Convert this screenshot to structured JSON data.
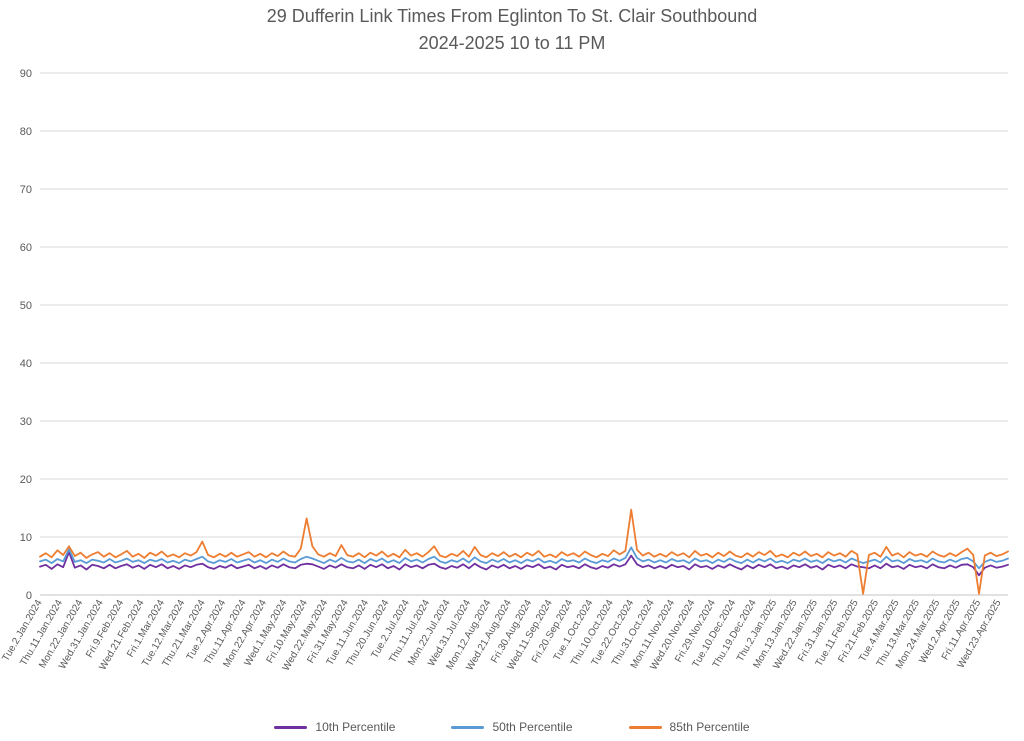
{
  "title": {
    "line1": "29 Dufferin Link Times From Eglinton To St. Clair Southbound",
    "line2": "2024-2025 10 to 11 PM"
  },
  "legend": [
    {
      "label": "10th Percentile",
      "color": "#7030A0"
    },
    {
      "label": "50th Percentile",
      "color": "#5B9BD5"
    },
    {
      "label": "85th Percentile",
      "color": "#ED7D31"
    }
  ],
  "colors": {
    "title_text": "#595959",
    "axis_text": "#595959",
    "gridline": "#D9D9D9",
    "axis_line": "#C3C3C3",
    "background": "#FFFFFF",
    "series_10th": "#7030A0",
    "series_50th": "#5B9BD5",
    "series_85th": "#ED7D31"
  },
  "chart_data": {
    "type": "line",
    "title": "29 Dufferin Link Times From Eglinton To St. Clair Southbound",
    "subtitle": "2024-2025 10 to 11 PM",
    "xlabel": "",
    "ylabel": "",
    "ylim": [
      0,
      90
    ],
    "ytick_interval": 10,
    "ytick_labels": [
      "0",
      "10",
      "20",
      "30",
      "40",
      "50",
      "60",
      "70",
      "80",
      "90"
    ],
    "grid": true,
    "legend_position": "bottom",
    "x_label_rotation_deg": 60,
    "x_labels": [
      "Tue.2.Jan.2024",
      "Thu.11.Jan.2024",
      "Mon.22.Jan.2024",
      "Wed.31.Jan.2024",
      "Fri.9.Feb.2024",
      "Wed.21.Feb.2024",
      "Fri.1.Mar.2024",
      "Tue.12.Mar.2024",
      "Thu.21.Mar.2024",
      "Tue.2.Apr.2024",
      "Thu.11.Apr.2024",
      "Mon.22.Apr.2024",
      "Wed.1.May.2024",
      "Fri.10.May.2024",
      "Wed.22.May.2024",
      "Fri.31.May.2024",
      "Tue.11.Jun.2024",
      "Thu.20.Jun.2024",
      "Tue.2.Jul.2024",
      "Thu.11.Jul.2024",
      "Mon.22.Jul.2024",
      "Wed.31.Jul.2024",
      "Mon.12.Aug.2024",
      "Wed.21.Aug.2024",
      "Fri.30.Aug.2024",
      "Wed.11.Sep.2024",
      "Fri.20.Sep.2024",
      "Tue.1.Oct.2024",
      "Thu.10.Oct.2024",
      "Tue.22.Oct.2024",
      "Thu.31.Oct.2024",
      "Mon.11.Nov.2024",
      "Wed.20.Nov.2024",
      "Fri.29.Nov.2024",
      "Tue.10.Dec.2024",
      "Thu.19.Dec.2024",
      "Thu.2.Jan.2025",
      "Mon.13.Jan.2025",
      "Wed.22.Jan.2025",
      "Fri.31.Jan.2025",
      "Tue.11.Feb.2025",
      "Fri.21.Feb.2025",
      "Tue.4.Mar.2025",
      "Thu.13.Mar.2025",
      "Mon.24.Mar.2025",
      "Wed.2.Apr.2025",
      "Fri.11.Apr.2025",
      "Wed.23.Apr.2025"
    ],
    "series": [
      {
        "name": "10th Percentile",
        "color": "#7030A0",
        "values": [
          4.9,
          5.2,
          4.5,
          5.3,
          4.8,
          7.4,
          4.7,
          5.1,
          4.4,
          5.2,
          5.0,
          4.6,
          5.2,
          4.6,
          5.0,
          5.3,
          4.7,
          5.1,
          4.5,
          5.2,
          4.8,
          5.3,
          4.6,
          5.0,
          4.5,
          5.1,
          4.8,
          5.2,
          5.4,
          4.8,
          4.5,
          5.0,
          4.7,
          5.2,
          4.6,
          4.9,
          5.2,
          4.6,
          5.0,
          4.5,
          5.1,
          4.7,
          5.3,
          4.8,
          4.6,
          5.2,
          5.4,
          5.3,
          4.9,
          4.5,
          5.1,
          4.7,
          5.3,
          4.8,
          4.6,
          5.1,
          4.5,
          5.2,
          4.8,
          5.3,
          4.6,
          5.0,
          4.4,
          5.3,
          4.8,
          5.1,
          4.6,
          5.2,
          5.4,
          4.8,
          4.5,
          5.0,
          4.7,
          5.3,
          4.6,
          5.4,
          4.8,
          4.4,
          5.1,
          4.7,
          5.2,
          4.6,
          5.0,
          4.5,
          5.1,
          4.8,
          5.3,
          4.6,
          4.9,
          4.4,
          5.2,
          4.8,
          5.0,
          4.6,
          5.3,
          4.8,
          4.5,
          5.0,
          4.7,
          5.3,
          4.9,
          5.3,
          6.8,
          5.3,
          4.8,
          5.1,
          4.6,
          5.0,
          4.6,
          5.2,
          4.8,
          5.0,
          4.4,
          5.3,
          4.8,
          5.0,
          4.5,
          5.1,
          4.7,
          5.3,
          4.8,
          4.4,
          5.1,
          4.6,
          5.2,
          4.8,
          5.3,
          4.6,
          4.9,
          4.5,
          5.1,
          4.8,
          5.3,
          4.7,
          5.0,
          4.4,
          5.2,
          4.8,
          5.1,
          4.6,
          5.3,
          4.9,
          4.8,
          4.6,
          5.1,
          4.6,
          5.4,
          4.8,
          5.0,
          4.5,
          5.2,
          4.8,
          5.0,
          4.6,
          5.3,
          4.8,
          4.6,
          5.1,
          4.7,
          5.2,
          5.3,
          4.8,
          3.4,
          4.7,
          5.1,
          4.7,
          4.9,
          5.2
        ]
      },
      {
        "name": "50th Percentile",
        "color": "#5B9BD5",
        "values": [
          5.8,
          6.1,
          5.5,
          6.2,
          5.8,
          7.9,
          5.7,
          6.0,
          5.5,
          6.1,
          5.9,
          5.6,
          6.2,
          5.6,
          5.9,
          6.3,
          5.7,
          6.0,
          5.5,
          6.1,
          5.8,
          6.2,
          5.6,
          5.9,
          5.5,
          6.1,
          5.8,
          6.2,
          6.6,
          5.8,
          5.5,
          6.0,
          5.7,
          6.2,
          5.6,
          5.9,
          6.2,
          5.6,
          6.0,
          5.5,
          6.1,
          5.7,
          6.3,
          5.8,
          5.6,
          6.2,
          6.6,
          6.3,
          5.9,
          5.5,
          6.1,
          5.7,
          6.4,
          5.8,
          5.6,
          6.1,
          5.5,
          6.2,
          5.8,
          6.3,
          5.6,
          6.0,
          5.5,
          6.4,
          5.8,
          6.1,
          5.6,
          6.2,
          6.6,
          5.8,
          5.5,
          6.0,
          5.7,
          6.3,
          5.6,
          6.5,
          5.8,
          5.5,
          6.1,
          5.7,
          6.2,
          5.6,
          6.0,
          5.5,
          6.1,
          5.8,
          6.3,
          5.6,
          5.9,
          5.5,
          6.2,
          5.8,
          6.0,
          5.6,
          6.3,
          5.8,
          5.5,
          6.0,
          5.7,
          6.3,
          5.9,
          6.4,
          8.2,
          6.4,
          5.8,
          6.1,
          5.6,
          6.0,
          5.6,
          6.2,
          5.8,
          6.0,
          5.5,
          6.3,
          5.8,
          6.0,
          5.5,
          6.1,
          5.7,
          6.3,
          5.8,
          5.5,
          6.1,
          5.6,
          6.2,
          5.8,
          6.3,
          5.6,
          5.9,
          5.5,
          6.1,
          5.8,
          6.3,
          5.7,
          6.0,
          5.5,
          6.2,
          5.8,
          6.1,
          5.6,
          6.3,
          5.9,
          5.5,
          5.8,
          6.1,
          5.6,
          6.6,
          5.8,
          6.0,
          5.5,
          6.2,
          5.8,
          6.0,
          5.6,
          6.3,
          5.8,
          5.6,
          6.1,
          5.7,
          6.2,
          6.4,
          5.8,
          4.6,
          5.7,
          6.1,
          5.7,
          5.9,
          6.3
        ]
      },
      {
        "name": "85th Percentile",
        "color": "#ED7D31",
        "values": [
          6.6,
          7.2,
          6.5,
          7.7,
          6.9,
          8.4,
          6.7,
          7.3,
          6.4,
          7.0,
          7.4,
          6.6,
          7.2,
          6.5,
          7.0,
          7.6,
          6.6,
          7.1,
          6.4,
          7.3,
          6.8,
          7.5,
          6.6,
          7.0,
          6.5,
          7.2,
          6.8,
          7.4,
          9.2,
          6.9,
          6.5,
          7.1,
          6.6,
          7.3,
          6.6,
          7.0,
          7.4,
          6.6,
          7.1,
          6.5,
          7.2,
          6.7,
          7.5,
          6.8,
          6.6,
          8.0,
          13.2,
          8.4,
          7.0,
          6.6,
          7.2,
          6.7,
          8.6,
          6.9,
          6.6,
          7.2,
          6.5,
          7.3,
          6.8,
          7.5,
          6.6,
          7.1,
          6.5,
          7.8,
          6.8,
          7.2,
          6.6,
          7.4,
          8.4,
          6.8,
          6.5,
          7.1,
          6.7,
          7.6,
          6.6,
          8.3,
          6.9,
          6.5,
          7.2,
          6.7,
          7.4,
          6.6,
          7.1,
          6.5,
          7.3,
          6.8,
          7.6,
          6.6,
          7.0,
          6.5,
          7.4,
          6.8,
          7.2,
          6.6,
          7.5,
          6.9,
          6.5,
          7.1,
          6.7,
          7.7,
          7.0,
          7.6,
          14.7,
          7.8,
          6.8,
          7.3,
          6.6,
          7.1,
          6.6,
          7.4,
          6.8,
          7.2,
          6.5,
          7.6,
          6.8,
          7.1,
          6.5,
          7.3,
          6.7,
          7.5,
          6.8,
          6.5,
          7.2,
          6.6,
          7.4,
          6.9,
          7.6,
          6.6,
          7.0,
          6.5,
          7.3,
          6.8,
          7.5,
          6.7,
          7.1,
          6.5,
          7.4,
          6.8,
          7.2,
          6.6,
          7.6,
          7.0,
          0.2,
          6.9,
          7.3,
          6.6,
          8.3,
          6.8,
          7.2,
          6.5,
          7.4,
          6.8,
          7.1,
          6.6,
          7.5,
          6.9,
          6.6,
          7.2,
          6.7,
          7.4,
          8.0,
          6.9,
          0.2,
          6.8,
          7.3,
          6.7,
          7.0,
          7.5
        ]
      }
    ]
  }
}
